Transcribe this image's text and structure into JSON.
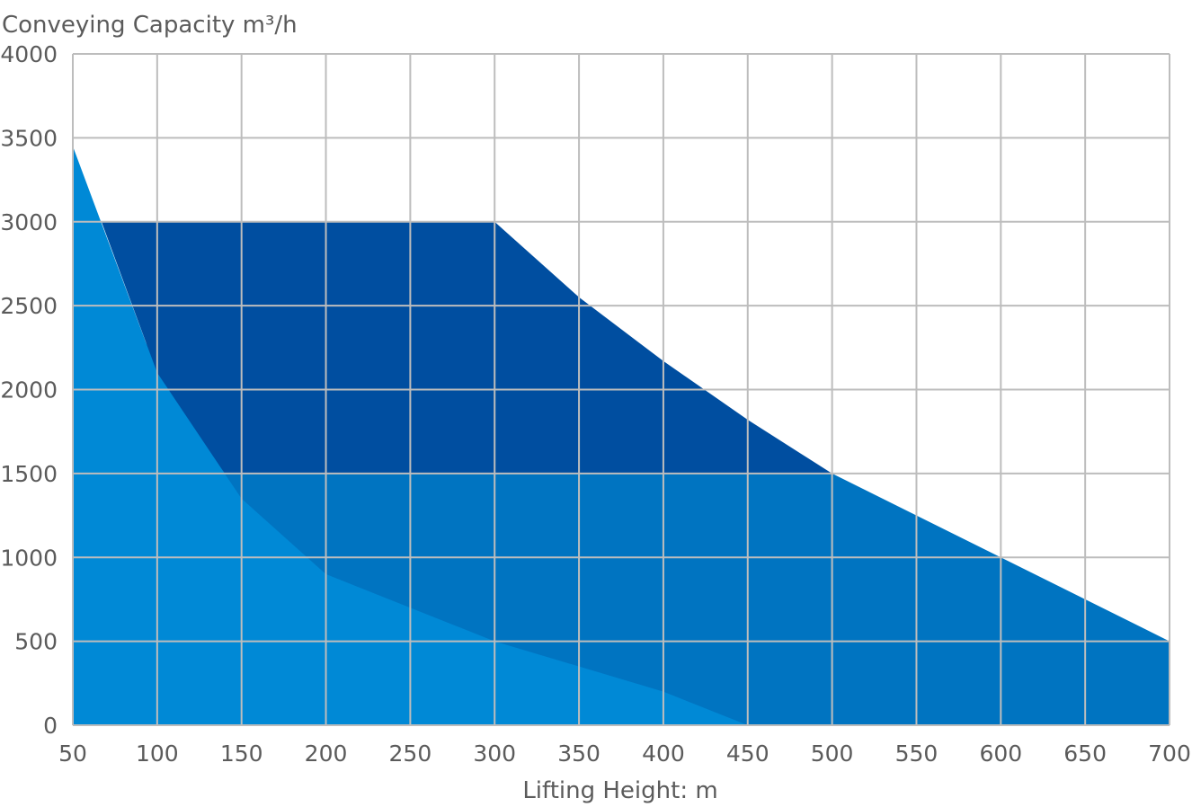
{
  "chart_data": {
    "type": "area",
    "ylabel": "Conveying Capacity m³/h",
    "xlabel": "Lifting Height: m",
    "xlim": [
      50,
      700
    ],
    "ylim": [
      0,
      4000
    ],
    "x_ticks": [
      "50",
      "100",
      "150",
      "200",
      "250",
      "300",
      "350",
      "400",
      "450",
      "500",
      "550",
      "600",
      "650",
      "700"
    ],
    "y_ticks": [
      "0",
      "500",
      "1000",
      "1500",
      "2000",
      "2500",
      "3000",
      "3500",
      "4000"
    ],
    "grid": true,
    "series": [
      {
        "color": "#0074c1",
        "points": [
          [
            50,
            0
          ],
          [
            50,
            3000
          ],
          [
            140,
            1500
          ],
          [
            500,
            1500
          ],
          [
            700,
            500
          ],
          [
            700,
            0
          ]
        ]
      },
      {
        "color": "#004ea0",
        "points": [
          [
            67,
            3000
          ],
          [
            300,
            3000
          ],
          [
            350,
            2550
          ],
          [
            400,
            2170
          ],
          [
            450,
            1820
          ],
          [
            500,
            1500
          ],
          [
            140,
            1500
          ],
          [
            100,
            2100
          ]
        ]
      },
      {
        "color": "#0089d6",
        "points": [
          [
            50,
            0
          ],
          [
            50,
            3450
          ],
          [
            100,
            2100
          ],
          [
            150,
            1350
          ],
          [
            200,
            900
          ],
          [
            300,
            500
          ],
          [
            400,
            200
          ],
          [
            450,
            0
          ]
        ]
      }
    ]
  }
}
